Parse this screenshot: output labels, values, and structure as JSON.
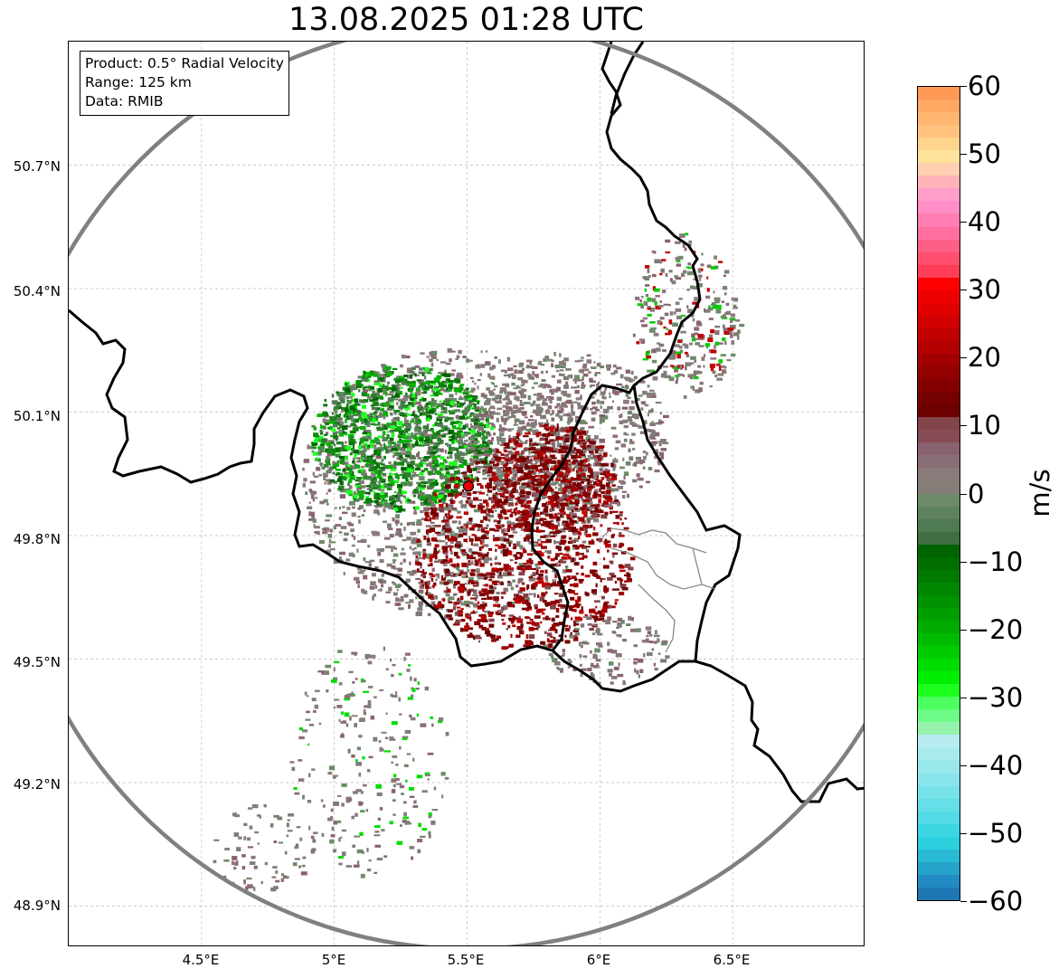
{
  "title": "13.08.2025 01:28 UTC",
  "info": {
    "product": "Product: 0.5° Radial Velocity",
    "range": "Range: 125 km",
    "data": "Data: RMIB"
  },
  "axes": {
    "lon_ticks": [
      "4.5°E",
      "5°E",
      "5.5°E",
      "6°E",
      "6.5°E"
    ],
    "lat_ticks": [
      "50.7°N",
      "50.4°N",
      "50.1°N",
      "49.8°N",
      "49.5°N",
      "49.2°N",
      "48.9°N"
    ],
    "lon_range": [
      4.0,
      7.0
    ],
    "lat_range": [
      48.8,
      51.0
    ]
  },
  "radar": {
    "lat": 49.92,
    "lon": 5.505,
    "range_km": 125,
    "marker_color": "#e8000b",
    "range_ring_color": "#808080"
  },
  "colorbar": {
    "unit": "m/s",
    "ticks": [
      "60",
      "50",
      "40",
      "30",
      "20",
      "10",
      "0",
      "−10",
      "−20",
      "−30",
      "−40",
      "−50",
      "−60"
    ],
    "min": -60,
    "max": 60,
    "colors_top_to_bottom": [
      "#ff9a56",
      "#ffa763",
      "#ffb670",
      "#ffc27e",
      "#ffd48d",
      "#ffe39c",
      "#ffcfb0",
      "#ffb4ba",
      "#ff9fca",
      "#ff8ec6",
      "#ff7db0",
      "#ff6e9e",
      "#ff5f86",
      "#ff4f6c",
      "#ff3d56",
      "#ff0000",
      "#ef0000",
      "#e00000",
      "#d00000",
      "#c10000",
      "#b20000",
      "#a20000",
      "#930000",
      "#840000",
      "#750000",
      "#6d0000",
      "#834449",
      "#864c55",
      "#89626f",
      "#8a6e75",
      "#8b7a7a",
      "#867d78",
      "#6e8a6a",
      "#5e8260",
      "#507a52",
      "#3f6e42",
      "#006400",
      "#006f00",
      "#007a00",
      "#008600",
      "#009200",
      "#009f00",
      "#00ad00",
      "#00bc00",
      "#00cc00",
      "#00dd00",
      "#00ee00",
      "#1dff1d",
      "#4dff60",
      "#6dfa86",
      "#95f3ae",
      "#b7edf0",
      "#a8ebee",
      "#98e8ec",
      "#88e5eb",
      "#78e2ea",
      "#66dfe8",
      "#52dbe6",
      "#3cd6e3",
      "#2bd0de",
      "#29b9d4",
      "#26a3ca",
      "#238bc4",
      "#1f77b4"
    ]
  }
}
